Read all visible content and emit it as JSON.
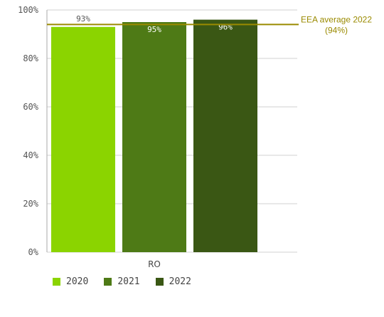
{
  "chart_data": {
    "type": "bar",
    "categories": [
      "RO"
    ],
    "series": [
      {
        "name": "2020",
        "values": [
          93
        ],
        "color": "#8bd400",
        "label": "93%"
      },
      {
        "name": "2021",
        "values": [
          95
        ],
        "color": "#4e7a16",
        "label": "95%"
      },
      {
        "name": "2022",
        "values": [
          96
        ],
        "color": "#3a5714",
        "label": "96%"
      }
    ],
    "ylim": [
      0,
      100
    ],
    "yticks": [
      "0%",
      "20%",
      "40%",
      "60%",
      "80%",
      "100%"
    ],
    "ytick_values": [
      0,
      20,
      40,
      60,
      80,
      100
    ],
    "reference_line": {
      "value": 94,
      "label_line1": "EEA average 2022",
      "label_line2": "(94%)",
      "color": "#9a8a00"
    },
    "grid": true,
    "legend_position": "bottom-left"
  }
}
